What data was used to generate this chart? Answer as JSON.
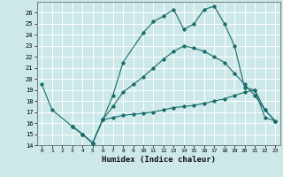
{
  "title": "",
  "xlabel": "Humidex (Indice chaleur)",
  "bg_color": "#cce8e8",
  "grid_color": "#ffffff",
  "line_color": "#1a6b6b",
  "xlim": [
    -0.5,
    23.5
  ],
  "ylim": [
    14,
    27
  ],
  "xticks": [
    0,
    1,
    2,
    3,
    4,
    5,
    6,
    7,
    8,
    9,
    10,
    11,
    12,
    13,
    14,
    15,
    16,
    17,
    18,
    19,
    20,
    21,
    22,
    23
  ],
  "yticks": [
    14,
    15,
    16,
    17,
    18,
    19,
    20,
    21,
    22,
    23,
    24,
    25,
    26
  ],
  "series": [
    {
      "x": [
        0,
        1,
        3,
        4,
        5,
        6,
        7,
        8,
        10,
        11,
        12,
        13,
        14,
        15,
        16,
        17,
        18,
        19,
        20,
        21,
        22,
        23
      ],
      "y": [
        19.5,
        17.2,
        15.7,
        15.0,
        14.2,
        16.3,
        18.5,
        21.5,
        24.2,
        25.2,
        25.7,
        26.3,
        24.5,
        25.0,
        26.3,
        26.6,
        25.0,
        23.0,
        19.2,
        19.0,
        17.2,
        16.2
      ]
    },
    {
      "x": [
        3,
        4,
        5,
        6,
        7,
        8,
        9,
        10,
        11,
        12,
        13,
        14,
        15,
        16,
        17,
        18,
        19,
        20,
        21,
        22,
        23
      ],
      "y": [
        15.7,
        15.0,
        14.2,
        16.3,
        16.5,
        16.7,
        16.8,
        16.9,
        17.0,
        17.2,
        17.4,
        17.5,
        17.6,
        17.8,
        18.0,
        18.2,
        18.5,
        18.8,
        19.0,
        16.5,
        16.2
      ]
    },
    {
      "x": [
        3,
        4,
        5,
        6,
        7,
        8,
        9,
        10,
        11,
        12,
        13,
        14,
        15,
        16,
        17,
        18,
        19,
        20,
        21,
        22,
        23
      ],
      "y": [
        15.7,
        15.0,
        14.2,
        16.3,
        17.5,
        18.8,
        19.5,
        20.2,
        21.0,
        21.8,
        22.5,
        23.0,
        22.8,
        22.5,
        22.0,
        21.5,
        20.5,
        19.5,
        18.5,
        17.2,
        16.2
      ]
    }
  ]
}
